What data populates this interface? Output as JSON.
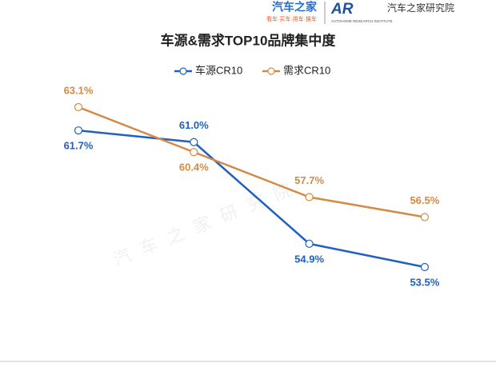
{
  "header": {
    "brand": "汽车之家",
    "brand_tagline": "看车·买车·用车·换车",
    "logo": "AR",
    "institute": "汽车之家研究院",
    "institute_en": "AUTOHOME RESEARCH INSTITUTE"
  },
  "watermark": "汽车之家研究院",
  "chart_data": {
    "type": "line",
    "title": "车源&需求TOP10品牌集中度",
    "categories": [
      null,
      null,
      null,
      null
    ],
    "series": [
      {
        "name": "车源CR10",
        "color": "#2060c0",
        "values": [
          61.7,
          61.0,
          54.9,
          53.5
        ],
        "value_labels": [
          "61.7%",
          "61.0%",
          "54.9%",
          "53.5%"
        ]
      },
      {
        "name": "需求CR10",
        "color": "#d48a45",
        "values": [
          63.1,
          60.4,
          57.7,
          56.5
        ],
        "value_labels": [
          "63.1%",
          "60.4%",
          "57.7%",
          "56.5%"
        ]
      }
    ]
  }
}
